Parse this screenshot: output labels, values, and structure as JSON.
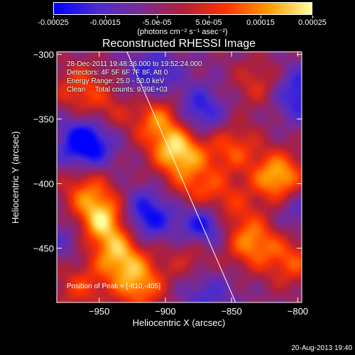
{
  "colorbar": {
    "tick_labels": [
      "-0.00025",
      "-0.00015",
      "-5.0e-05",
      "5.0e-05",
      "0.00015",
      "0.00025"
    ],
    "tick_values": [
      -0.00025,
      -0.00015,
      -5e-05,
      5e-05,
      0.00015,
      0.00025
    ],
    "units": "(photons cm⁻² s⁻¹ asec⁻²)",
    "range": [
      -0.00025,
      0.00025
    ],
    "colormap": [
      "#0000ff",
      "#4b2ccf",
      "#7a2a95",
      "#b0203a",
      "#ff3200",
      "#ff9a00",
      "#ffff99"
    ]
  },
  "chart_data": {
    "type": "heatmap",
    "title": "Reconstructed RHESSI Image",
    "xlabel": "Heliocentric X (arcsec)",
    "ylabel": "Heliocentric Y (arcsec)",
    "xlim": [
      -982,
      -797
    ],
    "ylim": [
      -492,
      -298
    ],
    "x_ticks": [
      -950,
      -900,
      -850,
      -800
    ],
    "y_ticks": [
      -300,
      -350,
      -400,
      -450
    ],
    "x_tick_labels": [
      "−950",
      "−900",
      "−850",
      "−800"
    ],
    "y_tick_labels": [
      "−300",
      "−350",
      "−400",
      "−450"
    ],
    "peak": [
      -810,
      -405
    ],
    "blobs": [
      {
        "x": -890,
        "y": -375,
        "amp": 1.0
      },
      {
        "x": -905,
        "y": -350,
        "amp": 0.7
      },
      {
        "x": -875,
        "y": -405,
        "amp": 0.55
      },
      {
        "x": -948,
        "y": -428,
        "amp": 0.95
      },
      {
        "x": -935,
        "y": -455,
        "amp": 0.8
      },
      {
        "x": -920,
        "y": -478,
        "amp": 0.75
      },
      {
        "x": -960,
        "y": -405,
        "amp": 0.55
      },
      {
        "x": -965,
        "y": -480,
        "amp": 0.45
      },
      {
        "x": -815,
        "y": -395,
        "amp": 0.95
      },
      {
        "x": -835,
        "y": -445,
        "amp": 0.75
      },
      {
        "x": -855,
        "y": -420,
        "amp": 0.55
      },
      {
        "x": -850,
        "y": -372,
        "amp": 0.55
      },
      {
        "x": -805,
        "y": -460,
        "amp": 0.55
      },
      {
        "x": -965,
        "y": -325,
        "amp": 0.5
      },
      {
        "x": -945,
        "y": -345,
        "amp": 0.35
      },
      {
        "x": -880,
        "y": -455,
        "amp": 0.4
      },
      {
        "x": -830,
        "y": -322,
        "amp": 0.4
      },
      {
        "x": -960,
        "y": -368,
        "amp": -0.95
      },
      {
        "x": -875,
        "y": -345,
        "amp": -0.6
      },
      {
        "x": -915,
        "y": -425,
        "amp": -0.7
      },
      {
        "x": -870,
        "y": -430,
        "amp": -0.9
      },
      {
        "x": -800,
        "y": -330,
        "amp": -0.6
      },
      {
        "x": -910,
        "y": -315,
        "amp": -0.5
      },
      {
        "x": -870,
        "y": -485,
        "amp": -0.4
      },
      {
        "x": -975,
        "y": -440,
        "amp": -0.3
      },
      {
        "x": -800,
        "y": -420,
        "amp": -0.35
      }
    ],
    "limb_line": [
      [
        -929,
        -298
      ],
      [
        -847,
        -492
      ]
    ]
  },
  "annotations": {
    "time_range": "28-Dec-2011 19:48:36.000 to 19:52:24.000",
    "detectors": "Detectors: 4F 5F 6F 7F 8F, Att 0",
    "energy_range": "Energy Range: 25.0 - 50.0 keV",
    "clean_counts": "Clean     Total counts: 9.39E+03",
    "peak_position": "Position of Peak = [-810,-405]"
  },
  "timestamp": "20-Aug-2013 19:40"
}
